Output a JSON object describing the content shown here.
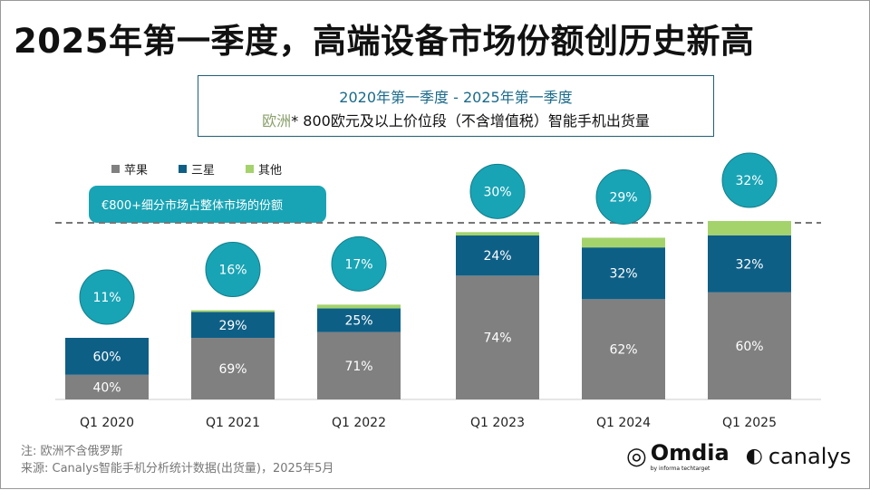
{
  "title": "2025年第一季度，高端设备市场份额创历史新高",
  "subtitle": {
    "line1": "2020年第一季度 - 2025年第一季度",
    "region": "欧洲",
    "line2": "* 800欧元及以上价位段（不含增值税）智能手机出货量"
  },
  "callout": "€800+细分市场占整体市场的份额",
  "footnote": {
    "note": "注: 欧洲不含俄罗斯",
    "source": "来源: Canalys智能手机分析统计数据(出货量)，2025年5月"
  },
  "logos": {
    "omdia": "Omdia",
    "omdia_sub": "by informa techtarget",
    "canalys": "canalys"
  },
  "chart_data": {
    "type": "bar",
    "stacked": true,
    "categories": [
      "Q1 2020",
      "Q1 2021",
      "Q1 2022",
      "Q1 2023",
      "Q1 2024",
      "Q1 2025"
    ],
    "series": [
      {
        "name": "苹果",
        "color": "#808080",
        "values": [
          40,
          69,
          71,
          74,
          62,
          60
        ],
        "labels": [
          "40%",
          "69%",
          "71%",
          "74%",
          "62%",
          "60%"
        ]
      },
      {
        "name": "三星",
        "color": "#0e5f86",
        "values": [
          60,
          29,
          25,
          24,
          32,
          32
        ],
        "labels": [
          "60%",
          "29%",
          "25%",
          "24%",
          "32%",
          "32%"
        ]
      },
      {
        "name": "其他",
        "color": "#a4d36c",
        "values": [
          0,
          2,
          4,
          2,
          6,
          8
        ]
      }
    ],
    "segment_share": {
      "values": [
        11,
        16,
        17,
        30,
        29,
        32
      ],
      "labels": [
        "11%",
        "16%",
        "17%",
        "30%",
        "29%",
        "32%"
      ],
      "color": "#18a4b5"
    },
    "legend": "top-left",
    "grid": false
  }
}
